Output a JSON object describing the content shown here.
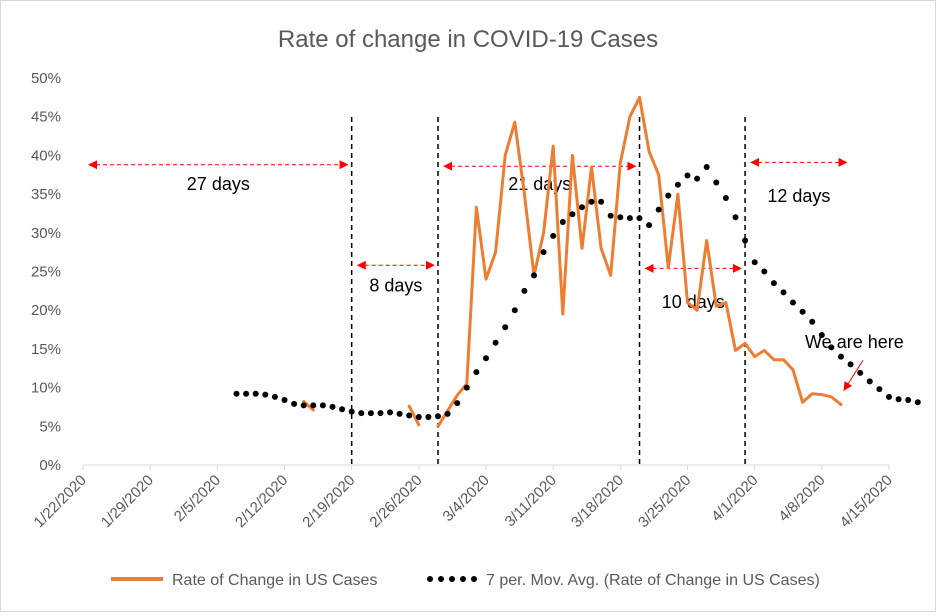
{
  "chart_data": {
    "type": "line",
    "title": "Rate of change in COVID-19 Cases",
    "x_ticks": [
      "1/22/2020",
      "1/29/2020",
      "2/5/2020",
      "2/12/2020",
      "2/19/2020",
      "2/26/2020",
      "3/4/2020",
      "3/11/2020",
      "3/18/2020",
      "3/25/2020",
      "4/1/2020",
      "4/8/2020",
      "4/15/2020"
    ],
    "y_ticks": [
      "0%",
      "5%",
      "10%",
      "15%",
      "20%",
      "25%",
      "30%",
      "35%",
      "40%",
      "45%",
      "50%"
    ],
    "ylim": [
      0,
      0.5
    ],
    "x_range": [
      "1/22/2020",
      "4/15/2020"
    ],
    "grid": false,
    "legend_position": "bottom",
    "series": [
      {
        "name": "Rate of Change in US Cases",
        "style": "solid",
        "color": "#ed7d31",
        "segments": [
          [
            [
              "2/14/2020",
              0.082
            ],
            [
              "2/15/2020",
              0.071
            ]
          ],
          [
            [
              "2/25/2020",
              0.076
            ],
            [
              "2/26/2020",
              0.052
            ]
          ],
          [
            [
              "2/28/2020",
              0.05
            ],
            [
              "2/29/2020",
              0.07
            ],
            [
              "3/1/2020",
              0.09
            ],
            [
              "3/2/2020",
              0.105
            ],
            [
              "3/3/2020",
              0.333
            ],
            [
              "3/4/2020",
              0.24
            ],
            [
              "3/5/2020",
              0.275
            ],
            [
              "3/6/2020",
              0.4
            ],
            [
              "3/7/2020",
              0.443
            ],
            [
              "3/8/2020",
              0.35
            ],
            [
              "3/9/2020",
              0.245
            ],
            [
              "3/10/2020",
              0.3
            ],
            [
              "3/11/2020",
              0.412
            ],
            [
              "3/12/2020",
              0.195
            ],
            [
              "3/13/2020",
              0.4
            ],
            [
              "3/14/2020",
              0.28
            ],
            [
              "3/15/2020",
              0.385
            ],
            [
              "3/16/2020",
              0.28
            ],
            [
              "3/17/2020",
              0.245
            ],
            [
              "3/18/2020",
              0.39
            ],
            [
              "3/19/2020",
              0.45
            ],
            [
              "3/20/2020",
              0.475
            ],
            [
              "3/21/2020",
              0.405
            ],
            [
              "3/22/2020",
              0.375
            ],
            [
              "3/23/2020",
              0.255
            ],
            [
              "3/24/2020",
              0.35
            ],
            [
              "3/25/2020",
              0.21
            ],
            [
              "3/26/2020",
              0.2
            ],
            [
              "3/27/2020",
              0.29
            ],
            [
              "3/28/2020",
              0.205
            ],
            [
              "3/29/2020",
              0.21
            ],
            [
              "3/30/2020",
              0.148
            ],
            [
              "3/31/2020",
              0.157
            ],
            [
              "4/1/2020",
              0.14
            ],
            [
              "4/2/2020",
              0.148
            ],
            [
              "4/3/2020",
              0.136
            ],
            [
              "4/4/2020",
              0.136
            ],
            [
              "4/5/2020",
              0.123
            ],
            [
              "4/6/2020",
              0.081
            ],
            [
              "4/7/2020",
              0.092
            ],
            [
              "4/8/2020",
              0.091
            ],
            [
              "4/9/2020",
              0.088
            ],
            [
              "4/10/2020",
              0.078
            ]
          ]
        ]
      },
      {
        "name": "7 per. Mov. Avg. (Rate of Change in US Cases)",
        "style": "dotted",
        "color": "#000000",
        "points": [
          [
            "2/7/2020",
            0.092
          ],
          [
            "2/8/2020",
            0.092
          ],
          [
            "2/9/2020",
            0.092
          ],
          [
            "2/10/2020",
            0.091
          ],
          [
            "2/11/2020",
            0.088
          ],
          [
            "2/12/2020",
            0.084
          ],
          [
            "2/13/2020",
            0.079
          ],
          [
            "2/14/2020",
            0.077
          ],
          [
            "2/15/2020",
            0.077
          ],
          [
            "2/16/2020",
            0.077
          ],
          [
            "2/17/2020",
            0.075
          ],
          [
            "2/18/2020",
            0.072
          ],
          [
            "2/19/2020",
            0.069
          ],
          [
            "2/20/2020",
            0.067
          ],
          [
            "2/21/2020",
            0.067
          ],
          [
            "2/22/2020",
            0.067
          ],
          [
            "2/23/2020",
            0.068
          ],
          [
            "2/24/2020",
            0.066
          ],
          [
            "2/25/2020",
            0.064
          ],
          [
            "2/26/2020",
            0.062
          ],
          [
            "2/27/2020",
            0.062
          ],
          [
            "2/28/2020",
            0.063
          ],
          [
            "2/29/2020",
            0.066
          ],
          [
            "3/1/2020",
            0.08
          ],
          [
            "3/2/2020",
            0.1
          ],
          [
            "3/3/2020",
            0.12
          ],
          [
            "3/4/2020",
            0.138
          ],
          [
            "3/5/2020",
            0.158
          ],
          [
            "3/6/2020",
            0.178
          ],
          [
            "3/7/2020",
            0.2
          ],
          [
            "3/8/2020",
            0.225
          ],
          [
            "3/9/2020",
            0.245
          ],
          [
            "3/10/2020",
            0.275
          ],
          [
            "3/11/2020",
            0.296
          ],
          [
            "3/12/2020",
            0.314
          ],
          [
            "3/13/2020",
            0.324
          ],
          [
            "3/14/2020",
            0.333
          ],
          [
            "3/15/2020",
            0.34
          ],
          [
            "3/16/2020",
            0.34
          ],
          [
            "3/17/2020",
            0.322
          ],
          [
            "3/18/2020",
            0.32
          ],
          [
            "3/19/2020",
            0.319
          ],
          [
            "3/20/2020",
            0.319
          ],
          [
            "3/21/2020",
            0.31
          ],
          [
            "3/22/2020",
            0.33
          ],
          [
            "3/23/2020",
            0.348
          ],
          [
            "3/24/2020",
            0.362
          ],
          [
            "3/25/2020",
            0.374
          ],
          [
            "3/26/2020",
            0.37
          ],
          [
            "3/27/2020",
            0.385
          ],
          [
            "3/28/2020",
            0.365
          ],
          [
            "3/29/2020",
            0.345
          ],
          [
            "3/30/2020",
            0.32
          ],
          [
            "3/31/2020",
            0.29
          ],
          [
            "4/1/2020",
            0.262
          ],
          [
            "4/2/2020",
            0.25
          ],
          [
            "4/3/2020",
            0.235
          ],
          [
            "4/4/2020",
            0.223
          ],
          [
            "4/5/2020",
            0.21
          ],
          [
            "4/6/2020",
            0.198
          ],
          [
            "4/7/2020",
            0.185
          ],
          [
            "4/8/2020",
            0.168
          ],
          [
            "4/9/2020",
            0.152
          ],
          [
            "4/10/2020",
            0.14
          ],
          [
            "4/11/2020",
            0.13
          ],
          [
            "4/12/2020",
            0.119
          ],
          [
            "4/13/2020",
            0.108
          ],
          [
            "4/14/2020",
            0.098
          ],
          [
            "4/15/2020",
            0.088
          ],
          [
            "4/16/2020",
            0.085
          ],
          [
            "4/17/2020",
            0.084
          ],
          [
            "4/18/2020",
            0.081
          ]
        ]
      }
    ],
    "reference_lines": [
      "2/19/2020",
      "2/28/2020",
      "3/20/2020",
      "3/31/2020"
    ],
    "annotations": [
      {
        "text": "27 days",
        "from": "1/22/2020",
        "to": "2/19/2020",
        "y": 0.388,
        "label_y": 0.355
      },
      {
        "text": "8 days",
        "from": "2/19/2020",
        "to": "2/28/2020",
        "y": 0.258,
        "label_y": 0.224
      },
      {
        "text": "21 days",
        "from": "2/28/2020",
        "to": "3/20/2020",
        "y": 0.386,
        "label_y": 0.355
      },
      {
        "text": "10 days",
        "from": "3/20/2020",
        "to": "3/31/2020",
        "y": 0.254,
        "label_y": 0.203
      },
      {
        "text": "12 days",
        "from": "3/31/2020",
        "to": "4/11/2020",
        "y": 0.391,
        "label_y": 0.34
      }
    ],
    "callout": {
      "text": "We are here",
      "at": "4/10/2020",
      "y": 0.094
    }
  }
}
